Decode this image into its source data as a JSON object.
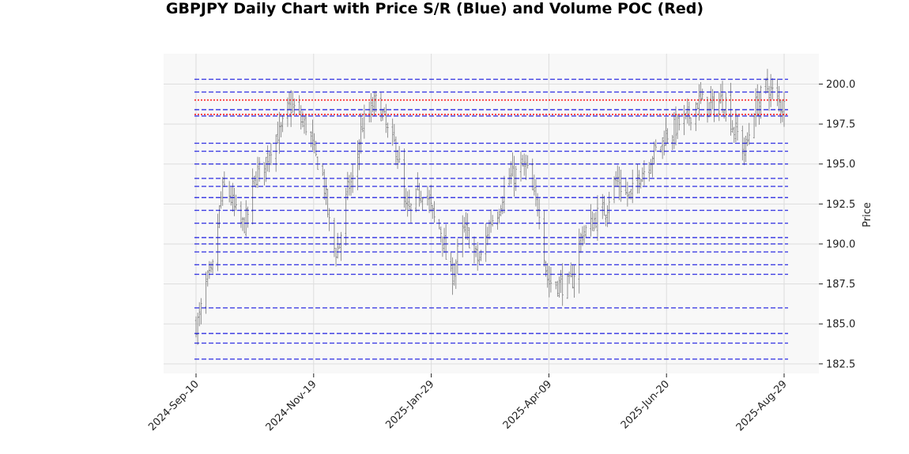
{
  "chart_data": {
    "type": "ohlc",
    "title": "GBPJPY Daily Chart with Price S/R (Blue) and Volume POC (Red)",
    "ylabel": "Price",
    "xlabel": "",
    "ylim": [
      181.9,
      201.9
    ],
    "y_ticks": [
      182.5,
      185.0,
      187.5,
      190.0,
      192.5,
      195.0,
      197.5,
      200.0
    ],
    "x_start": "2024-09-10",
    "x_end": "2025-08-29",
    "x_tick_labels": [
      "2024-Sep-10",
      "2024-Nov-19",
      "2025-Jan-29",
      "2025-Apr-09",
      "2025-Jun-20",
      "2025-Aug-29"
    ],
    "grid": true,
    "support_resistance_levels": [
      182.8,
      183.8,
      184.4,
      186.0,
      188.1,
      188.7,
      189.5,
      190.0,
      190.4,
      191.3,
      192.1,
      192.9,
      193.6,
      194.1,
      195.0,
      195.8,
      196.3,
      198.0,
      198.4,
      199.5,
      200.3
    ],
    "poc_levels": [
      199.0,
      198.1
    ],
    "colors": {
      "support_resistance": "#0000dd",
      "poc": "#ff0000",
      "candles": "#777777",
      "plot_background": "#f8f8f8",
      "grid": "#dddddd"
    },
    "price_anchors": [
      [
        "2024-09-10",
        185.0
      ],
      [
        "2024-09-18",
        187.8
      ],
      [
        "2024-09-27",
        193.5
      ],
      [
        "2024-10-08",
        191.2
      ],
      [
        "2024-10-18",
        194.6
      ],
      [
        "2024-10-29",
        196.8
      ],
      [
        "2024-11-06",
        198.6
      ],
      [
        "2024-11-15",
        197.4
      ],
      [
        "2024-11-22",
        195.2
      ],
      [
        "2024-12-03",
        189.6
      ],
      [
        "2024-12-12",
        193.8
      ],
      [
        "2024-12-20",
        197.6
      ],
      [
        "2024-12-27",
        198.8
      ],
      [
        "2025-01-07",
        196.2
      ],
      [
        "2025-01-15",
        192.0
      ],
      [
        "2025-01-24",
        193.4
      ],
      [
        "2025-02-03",
        191.0
      ],
      [
        "2025-02-10",
        188.0
      ],
      [
        "2025-02-18",
        190.8
      ],
      [
        "2025-02-27",
        189.0
      ],
      [
        "2025-03-07",
        191.6
      ],
      [
        "2025-03-18",
        194.2
      ],
      [
        "2025-03-26",
        194.8
      ],
      [
        "2025-04-03",
        192.5
      ],
      [
        "2025-04-10",
        187.6
      ],
      [
        "2025-04-22",
        187.4
      ],
      [
        "2025-05-01",
        190.8
      ],
      [
        "2025-05-12",
        192.0
      ],
      [
        "2025-05-20",
        193.9
      ],
      [
        "2025-05-28",
        193.0
      ],
      [
        "2025-06-05",
        194.6
      ],
      [
        "2025-06-13",
        195.8
      ],
      [
        "2025-06-20",
        196.9
      ],
      [
        "2025-06-30",
        197.7
      ],
      [
        "2025-07-09",
        198.9
      ],
      [
        "2025-07-16",
        198.6
      ],
      [
        "2025-07-24",
        199.0
      ],
      [
        "2025-07-31",
        197.0
      ],
      [
        "2025-08-05",
        195.9
      ],
      [
        "2025-08-12",
        198.6
      ],
      [
        "2025-08-18",
        199.8
      ],
      [
        "2025-08-29",
        198.6
      ]
    ]
  }
}
